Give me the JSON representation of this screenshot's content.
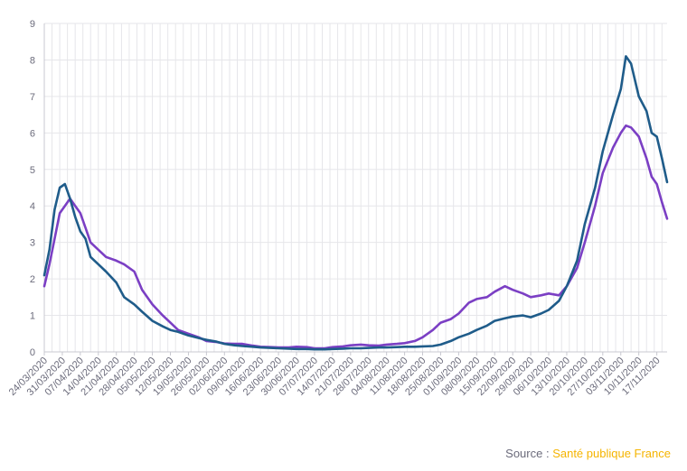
{
  "source": {
    "prefix": "Source : ",
    "name": "Santé publique France"
  },
  "chart_data": {
    "type": "line",
    "title": "",
    "xlabel": "",
    "ylabel": "",
    "ylim": [
      0,
      9
    ],
    "yticks": [
      "0",
      "1",
      "2",
      "3",
      "4",
      "5",
      "6",
      "7",
      "8",
      "9"
    ],
    "grid": {
      "vertical": true,
      "horizontal": true
    },
    "x_tick_labels": [
      "24/03/2020",
      "31/03/2020",
      "07/04/2020",
      "14/04/2020",
      "21/04/2020",
      "28/04/2020",
      "05/05/2020",
      "12/05/2020",
      "19/05/2020",
      "26/05/2020",
      "02/06/2020",
      "09/06/2020",
      "16/06/2020",
      "23/06/2020",
      "30/06/2020",
      "07/07/2020",
      "14/07/2020",
      "21/07/2020",
      "28/07/2020",
      "04/08/2020",
      "11/08/2020",
      "18/08/2020",
      "25/08/2020",
      "01/09/2020",
      "08/09/2020",
      "15/09/2020",
      "22/09/2020",
      "29/09/2020",
      "06/10/2020",
      "13/10/2020",
      "20/10/2020",
      "27/10/2020",
      "03/11/2020",
      "10/11/2020",
      "17/11/2020"
    ],
    "colors": {
      "series_blue": "#1f5c8a",
      "series_purple": "#7b3fc4",
      "grid": "#e6e6ea",
      "axis": "#c8c8d0",
      "label": "#6b6b7b",
      "source_highlight": "#f5b400"
    },
    "series": [
      {
        "color": "#1f5c8a",
        "points": [
          [
            "24/03/2020",
            2.1
          ],
          [
            "26/03/2020",
            2.8
          ],
          [
            "28/03/2020",
            3.9
          ],
          [
            "30/03/2020",
            4.5
          ],
          [
            "01/04/2020",
            4.6
          ],
          [
            "03/04/2020",
            4.2
          ],
          [
            "05/04/2020",
            3.7
          ],
          [
            "07/04/2020",
            3.3
          ],
          [
            "09/04/2020",
            3.1
          ],
          [
            "11/04/2020",
            2.6
          ],
          [
            "14/04/2020",
            2.4
          ],
          [
            "17/04/2020",
            2.2
          ],
          [
            "21/04/2020",
            1.9
          ],
          [
            "24/04/2020",
            1.5
          ],
          [
            "28/04/2020",
            1.3
          ],
          [
            "01/05/2020",
            1.1
          ],
          [
            "05/05/2020",
            0.85
          ],
          [
            "09/05/2020",
            0.7
          ],
          [
            "12/05/2020",
            0.6
          ],
          [
            "15/05/2020",
            0.55
          ],
          [
            "19/05/2020",
            0.45
          ],
          [
            "23/05/2020",
            0.38
          ],
          [
            "26/05/2020",
            0.33
          ],
          [
            "30/05/2020",
            0.28
          ],
          [
            "02/06/2020",
            0.22
          ],
          [
            "06/06/2020",
            0.18
          ],
          [
            "09/06/2020",
            0.16
          ],
          [
            "13/06/2020",
            0.14
          ],
          [
            "16/06/2020",
            0.12
          ],
          [
            "20/06/2020",
            0.11
          ],
          [
            "23/06/2020",
            0.1
          ],
          [
            "27/06/2020",
            0.09
          ],
          [
            "30/06/2020",
            0.08
          ],
          [
            "04/07/2020",
            0.08
          ],
          [
            "07/07/2020",
            0.07
          ],
          [
            "11/07/2020",
            0.07
          ],
          [
            "14/07/2020",
            0.08
          ],
          [
            "18/07/2020",
            0.09
          ],
          [
            "21/07/2020",
            0.1
          ],
          [
            "25/07/2020",
            0.1
          ],
          [
            "28/07/2020",
            0.11
          ],
          [
            "01/08/2020",
            0.12
          ],
          [
            "04/08/2020",
            0.12
          ],
          [
            "08/08/2020",
            0.13
          ],
          [
            "11/08/2020",
            0.14
          ],
          [
            "15/08/2020",
            0.14
          ],
          [
            "18/08/2020",
            0.15
          ],
          [
            "22/08/2020",
            0.16
          ],
          [
            "25/08/2020",
            0.2
          ],
          [
            "29/08/2020",
            0.3
          ],
          [
            "01/09/2020",
            0.4
          ],
          [
            "05/09/2020",
            0.5
          ],
          [
            "08/09/2020",
            0.6
          ],
          [
            "12/09/2020",
            0.72
          ],
          [
            "15/09/2020",
            0.85
          ],
          [
            "19/09/2020",
            0.92
          ],
          [
            "22/09/2020",
            0.97
          ],
          [
            "26/09/2020",
            1.0
          ],
          [
            "29/09/2020",
            0.95
          ],
          [
            "03/10/2020",
            1.05
          ],
          [
            "06/10/2020",
            1.15
          ],
          [
            "10/10/2020",
            1.4
          ],
          [
            "13/10/2020",
            1.8
          ],
          [
            "17/10/2020",
            2.5
          ],
          [
            "20/10/2020",
            3.5
          ],
          [
            "24/10/2020",
            4.5
          ],
          [
            "27/10/2020",
            5.5
          ],
          [
            "31/10/2020",
            6.5
          ],
          [
            "03/11/2020",
            7.2
          ],
          [
            "05/11/2020",
            8.1
          ],
          [
            "07/11/2020",
            7.9
          ],
          [
            "10/11/2020",
            7.0
          ],
          [
            "13/11/2020",
            6.6
          ],
          [
            "15/11/2020",
            6.0
          ],
          [
            "17/11/2020",
            5.9
          ],
          [
            "19/11/2020",
            5.3
          ],
          [
            "21/11/2020",
            4.65
          ]
        ]
      },
      {
        "color": "#7b3fc4",
        "points": [
          [
            "24/03/2020",
            1.8
          ],
          [
            "26/03/2020",
            2.4
          ],
          [
            "28/03/2020",
            3.1
          ],
          [
            "30/03/2020",
            3.8
          ],
          [
            "01/04/2020",
            4.0
          ],
          [
            "03/04/2020",
            4.2
          ],
          [
            "05/04/2020",
            4.0
          ],
          [
            "07/04/2020",
            3.8
          ],
          [
            "09/04/2020",
            3.4
          ],
          [
            "11/04/2020",
            3.0
          ],
          [
            "14/04/2020",
            2.8
          ],
          [
            "17/04/2020",
            2.6
          ],
          [
            "21/04/2020",
            2.5
          ],
          [
            "24/04/2020",
            2.4
          ],
          [
            "28/04/2020",
            2.2
          ],
          [
            "01/05/2020",
            1.7
          ],
          [
            "05/05/2020",
            1.3
          ],
          [
            "09/05/2020",
            1.0
          ],
          [
            "12/05/2020",
            0.8
          ],
          [
            "15/05/2020",
            0.6
          ],
          [
            "19/05/2020",
            0.5
          ],
          [
            "23/05/2020",
            0.4
          ],
          [
            "26/05/2020",
            0.3
          ],
          [
            "30/05/2020",
            0.27
          ],
          [
            "02/06/2020",
            0.23
          ],
          [
            "06/06/2020",
            0.22
          ],
          [
            "09/06/2020",
            0.22
          ],
          [
            "13/06/2020",
            0.17
          ],
          [
            "16/06/2020",
            0.14
          ],
          [
            "20/06/2020",
            0.13
          ],
          [
            "23/06/2020",
            0.12
          ],
          [
            "27/06/2020",
            0.12
          ],
          [
            "30/06/2020",
            0.14
          ],
          [
            "04/07/2020",
            0.13
          ],
          [
            "07/07/2020",
            0.1
          ],
          [
            "11/07/2020",
            0.1
          ],
          [
            "14/07/2020",
            0.13
          ],
          [
            "18/07/2020",
            0.15
          ],
          [
            "21/07/2020",
            0.18
          ],
          [
            "25/07/2020",
            0.2
          ],
          [
            "28/07/2020",
            0.18
          ],
          [
            "01/08/2020",
            0.17
          ],
          [
            "04/08/2020",
            0.2
          ],
          [
            "08/08/2020",
            0.22
          ],
          [
            "11/08/2020",
            0.24
          ],
          [
            "15/08/2020",
            0.3
          ],
          [
            "18/08/2020",
            0.4
          ],
          [
            "22/08/2020",
            0.6
          ],
          [
            "25/08/2020",
            0.8
          ],
          [
            "29/08/2020",
            0.9
          ],
          [
            "01/09/2020",
            1.05
          ],
          [
            "05/09/2020",
            1.35
          ],
          [
            "08/09/2020",
            1.45
          ],
          [
            "12/09/2020",
            1.5
          ],
          [
            "15/09/2020",
            1.65
          ],
          [
            "19/09/2020",
            1.8
          ],
          [
            "22/09/2020",
            1.7
          ],
          [
            "26/09/2020",
            1.6
          ],
          [
            "29/09/2020",
            1.5
          ],
          [
            "03/10/2020",
            1.55
          ],
          [
            "06/10/2020",
            1.6
          ],
          [
            "10/10/2020",
            1.55
          ],
          [
            "13/10/2020",
            1.8
          ],
          [
            "17/10/2020",
            2.3
          ],
          [
            "20/10/2020",
            3.0
          ],
          [
            "24/10/2020",
            4.0
          ],
          [
            "27/10/2020",
            4.9
          ],
          [
            "31/10/2020",
            5.6
          ],
          [
            "03/11/2020",
            6.0
          ],
          [
            "05/11/2020",
            6.2
          ],
          [
            "07/11/2020",
            6.15
          ],
          [
            "10/11/2020",
            5.9
          ],
          [
            "13/11/2020",
            5.3
          ],
          [
            "15/11/2020",
            4.8
          ],
          [
            "17/11/2020",
            4.6
          ],
          [
            "19/11/2020",
            4.1
          ],
          [
            "21/11/2020",
            3.65
          ]
        ]
      }
    ]
  }
}
